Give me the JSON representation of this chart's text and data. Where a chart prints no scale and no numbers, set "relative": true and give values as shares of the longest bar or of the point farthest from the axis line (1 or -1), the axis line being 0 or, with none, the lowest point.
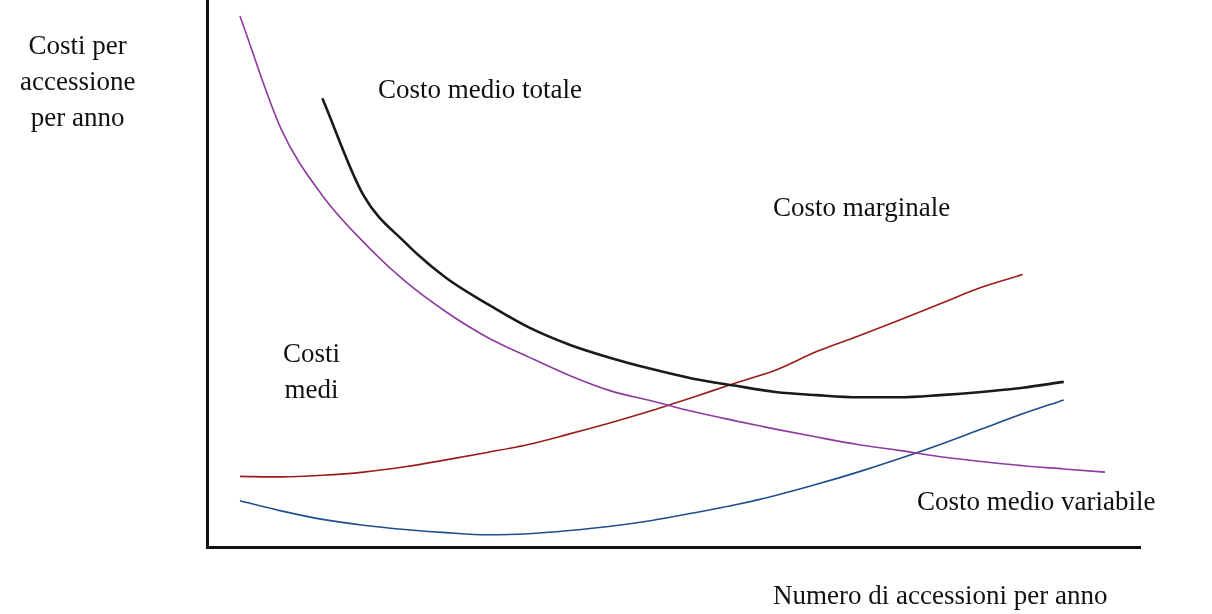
{
  "chart_data": {
    "type": "line",
    "relative": true,
    "xlabel": "Numero di accessioni per anno",
    "ylabel": "Costi per\naccessione\nper anno",
    "annotations": [
      "Costo medio totale",
      "Costo marginale",
      "Costi\nmedi",
      "Costo medio variabile"
    ],
    "categories": [
      null,
      null,
      null,
      null,
      null,
      null,
      null,
      null,
      null,
      null,
      null,
      null,
      null,
      null,
      null,
      null,
      null,
      null,
      null,
      null,
      null,
      null
    ],
    "marker": "none",
    "grid": false,
    "legend": false,
    "series": [
      {
        "color": "#8e3a9e",
        "values": [
          1.0,
          0.787,
          0.662,
          0.574,
          0.501,
          0.443,
          0.395,
          0.358,
          0.323,
          0.294,
          0.275,
          0.255,
          0.238,
          0.222,
          0.207,
          0.193,
          0.182,
          0.17,
          0.161,
          0.153,
          0.147,
          0.141
        ]
      },
      {
        "color": "#1a1a1a",
        "values": [
          null,
          null,
          0.845,
          0.662,
          0.574,
          0.507,
          0.458,
          0.414,
          0.381,
          0.356,
          0.335,
          0.317,
          0.304,
          0.292,
          0.286,
          0.282,
          0.282,
          0.286,
          0.292,
          0.3,
          0.311,
          null
        ]
      },
      {
        "color": "#9b1c1c",
        "values": [
          0.133,
          0.132,
          0.135,
          0.141,
          0.151,
          0.164,
          0.178,
          0.193,
          0.213,
          0.234,
          0.257,
          0.282,
          0.308,
          0.333,
          0.368,
          0.397,
          0.427,
          0.458,
          0.489,
          0.513,
          null,
          null
        ]
      },
      {
        "color": "#1f4e8c",
        "values": [
          0.087,
          0.068,
          0.052,
          0.041,
          0.033,
          0.027,
          0.023,
          0.025,
          0.031,
          0.039,
          0.05,
          0.064,
          0.079,
          0.097,
          0.118,
          0.141,
          0.166,
          0.193,
          0.222,
          0.251,
          0.277,
          null
        ]
      }
    ]
  }
}
